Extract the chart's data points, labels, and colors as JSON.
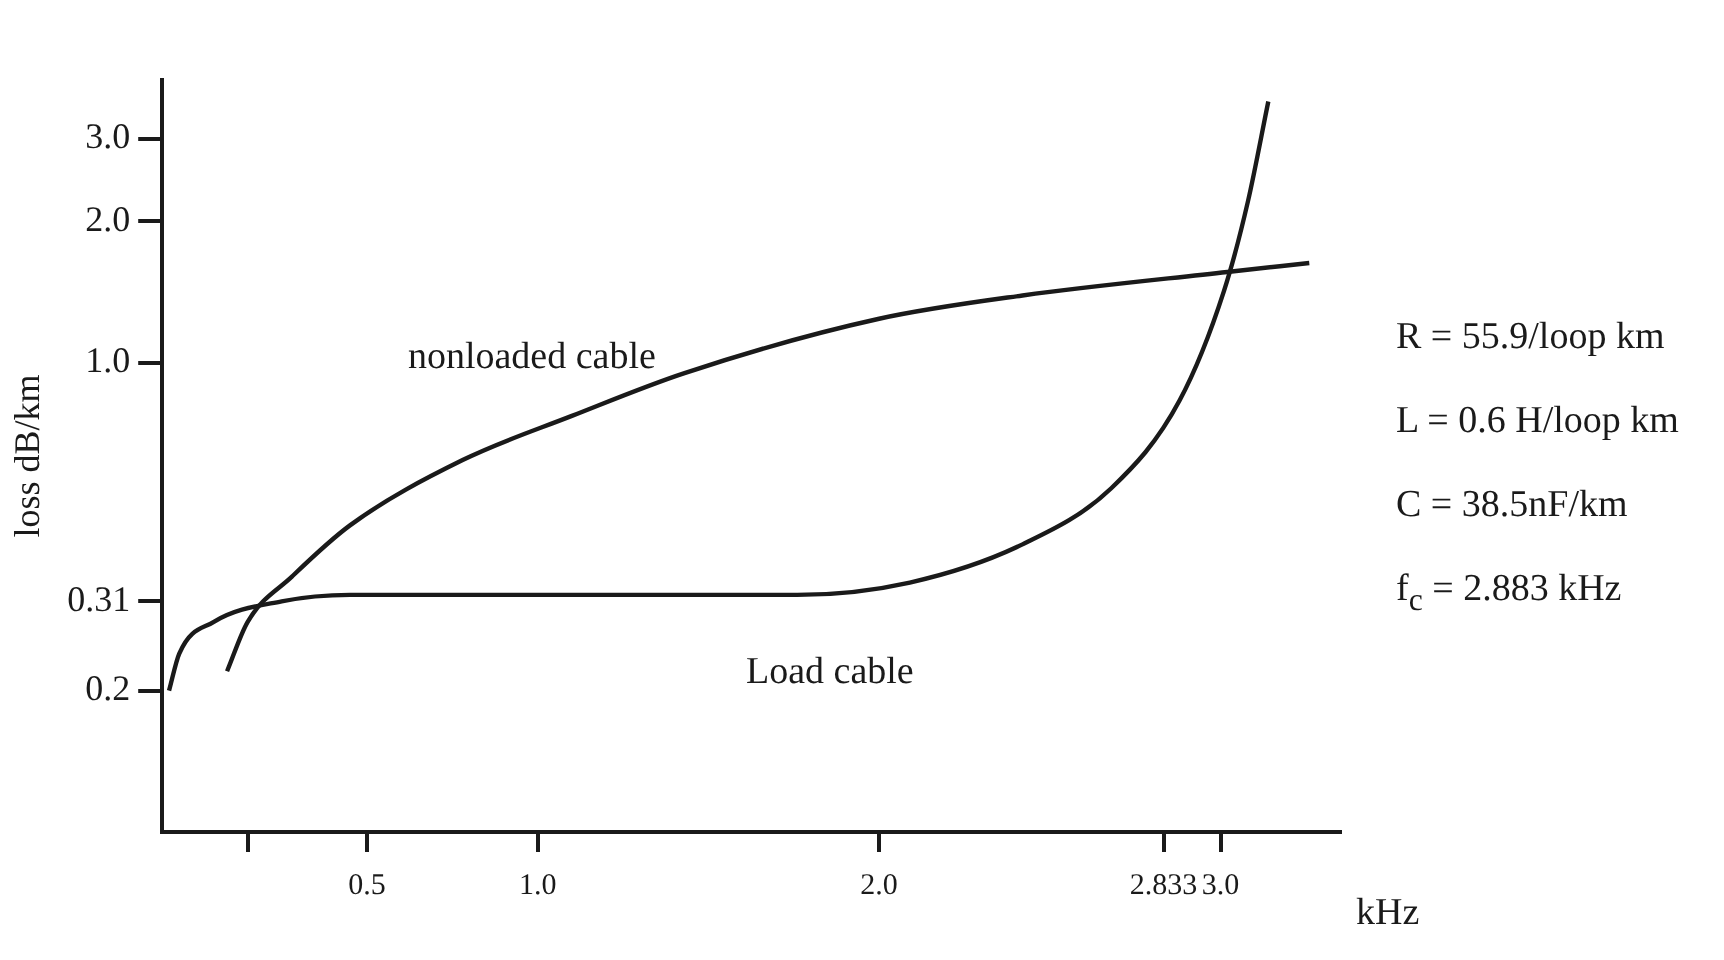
{
  "chart_data": {
    "type": "line",
    "xlabel": "kHz",
    "ylabel": "loss dB/km",
    "log": "y",
    "xlim": [
      -0.1,
      3.35
    ],
    "xticks": [
      {
        "value": 0.15,
        "label": null
      },
      0.5,
      {
        "value": 1,
        "label": "1.0"
      },
      {
        "value": 2,
        "label": "2.0"
      },
      2.833,
      {
        "value": 3,
        "label": "3.0"
      }
    ],
    "ylim": [
      0.1,
      4
    ],
    "yticks": [
      0.2,
      0.31,
      {
        "value": 1,
        "label": "1.0"
      },
      {
        "value": 2,
        "label": "2.0"
      },
      {
        "value": 3,
        "label": "3.0"
      }
    ],
    "grid": false,
    "legend": false,
    "marker": "none",
    "line_style": "solid",
    "series": [
      {
        "name": "nonloaded cable",
        "color": "#1a1a1a",
        "x": [
          0.09,
          0.15,
          0.28,
          0.45,
          0.78,
          1.1,
          1.43,
          2.0,
          2.42,
          3.02,
          3.26
        ],
        "values": [
          0.22,
          0.28,
          0.35,
          0.45,
          0.62,
          0.77,
          0.95,
          1.24,
          1.39,
          1.56,
          1.63
        ]
      },
      {
        "name": "Load cable",
        "color": "#1a1a1a",
        "x": [
          -0.08,
          -0.05,
          0.05,
          0.25,
          0.45,
          1.1,
          1.76,
          2.09,
          2.42,
          2.68,
          2.88,
          3.01,
          3.08,
          3.14
        ],
        "values": [
          0.2,
          0.24,
          0.28,
          0.31,
          0.32,
          0.32,
          0.32,
          0.34,
          0.41,
          0.54,
          0.83,
          1.42,
          2.2,
          3.6
        ]
      }
    ],
    "annotations": [
      "R = 55.9/loop km",
      "L = 0.6 H/loop km",
      "C = 38.5nF/km",
      "f$_{c}$ = 2.883 kHz"
    ]
  }
}
